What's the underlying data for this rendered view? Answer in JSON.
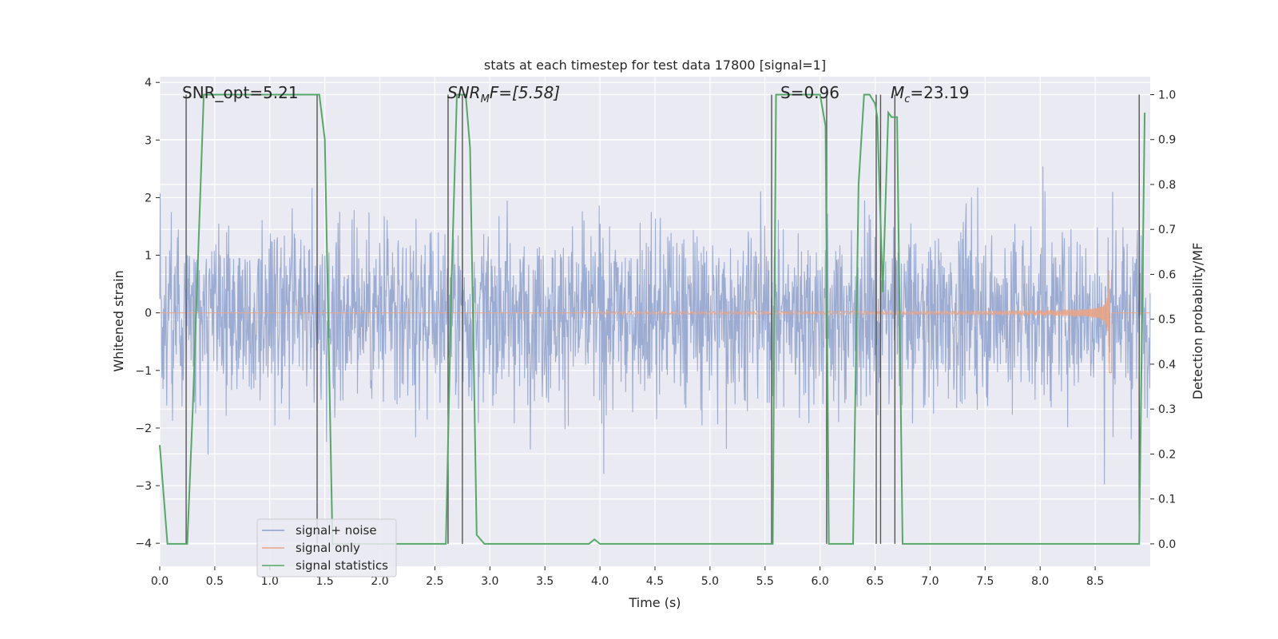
{
  "chart_data": {
    "type": "line",
    "title": "stats at each timestep for test data 17800 [signal=1]",
    "xlabel": "Time (s)",
    "ylabel_left": "Whitened strain",
    "ylabel_right": "Detection probability/MF",
    "xlim": [
      0.0,
      9.0
    ],
    "ylim_left": [
      -4.4,
      4.1
    ],
    "ylim_right": [
      -0.05,
      1.04
    ],
    "x_ticks": [
      "0.0",
      "0.5",
      "1.0",
      "1.5",
      "2.0",
      "2.5",
      "3.0",
      "3.5",
      "4.0",
      "4.5",
      "5.0",
      "5.5",
      "6.0",
      "6.5",
      "7.0",
      "7.5",
      "8.0",
      "8.5"
    ],
    "x_tick_values": [
      0,
      0.5,
      1,
      1.5,
      2,
      2.5,
      3,
      3.5,
      4,
      4.5,
      5,
      5.5,
      6,
      6.5,
      7,
      7.5,
      8,
      8.5
    ],
    "y_left_ticks": [
      "−4",
      "−3",
      "−2",
      "−1",
      "0",
      "1",
      "2",
      "3",
      "4"
    ],
    "y_left_tick_values": [
      -4,
      -3,
      -2,
      -1,
      0,
      1,
      2,
      3,
      4
    ],
    "y_right_ticks": [
      "0.0",
      "0.1",
      "0.2",
      "0.3",
      "0.4",
      "0.5",
      "0.6",
      "0.7",
      "0.8",
      "0.9",
      "1.0"
    ],
    "y_right_tick_values": [
      0,
      0.1,
      0.2,
      0.3,
      0.4,
      0.5,
      0.6,
      0.7,
      0.8,
      0.9,
      1.0
    ],
    "annotations": {
      "snr_opt": "SNR_opt=5.21",
      "snr_mf_base": "SNR",
      "snr_mf_sub": "M",
      "snr_mf_rest": "F=[5.58]",
      "s_val": "S=0.96",
      "mc_base": "M",
      "mc_sub": "c",
      "mc_rest": "=23.19"
    },
    "legend": {
      "position": "lower-left",
      "entries": [
        "signal+ noise",
        "signal only",
        "signal statistics"
      ]
    },
    "series": [
      {
        "name": "signal+ noise",
        "axis": "left",
        "kind": "noise",
        "color": "#8da0cb",
        "x_range": [
          0.0,
          9.0
        ],
        "core_amplitude": 1.7,
        "spike_max": 3.45,
        "spike_min": -4.0
      },
      {
        "name": "signal only",
        "axis": "left",
        "kind": "chirp",
        "color": "#e8a487",
        "x_range": [
          4.0,
          8.65
        ],
        "peak_time": 8.63,
        "peak_amplitude": 1.15
      },
      {
        "name": "signal statistics",
        "axis": "right",
        "kind": "line",
        "color": "#55a868",
        "x": [
          0.0,
          0.07,
          0.25,
          0.3,
          0.4,
          1.0,
          1.3,
          1.45,
          1.5,
          1.57,
          2.0,
          2.6,
          2.65,
          2.7,
          2.78,
          2.82,
          2.88,
          2.95,
          3.0,
          3.5,
          3.9,
          3.95,
          4.0,
          4.5,
          5.0,
          5.5,
          5.57,
          5.6,
          5.65,
          6.0,
          6.05,
          6.08,
          6.1,
          6.3,
          6.35,
          6.4,
          6.45,
          6.5,
          6.52,
          6.57,
          6.62,
          6.65,
          6.7,
          6.75,
          6.8,
          7.0,
          8.0,
          8.9,
          8.95
        ],
        "y": [
          0.22,
          0.0,
          0.0,
          0.3,
          1.0,
          1.0,
          1.0,
          1.0,
          0.9,
          0.0,
          0.0,
          0.0,
          0.57,
          1.0,
          1.0,
          0.88,
          0.02,
          0.0,
          0.0,
          0.0,
          0.0,
          0.01,
          0.0,
          0.0,
          0.0,
          0.0,
          0.0,
          1.0,
          1.0,
          1.0,
          0.93,
          0.0,
          0.0,
          0.0,
          0.8,
          1.0,
          1.0,
          0.98,
          0.95,
          0.56,
          0.96,
          0.95,
          0.95,
          0.0,
          0.0,
          0.0,
          0.0,
          0.0,
          0.96
        ]
      }
    ],
    "vertical_markers": [
      0.24,
      1.43,
      2.62,
      2.75,
      5.56,
      6.06,
      6.51,
      6.55,
      6.68,
      8.9
    ]
  },
  "colors": {
    "plot_bg": "#eaeaf2",
    "grid": "#ffffff",
    "marker": "#555555"
  }
}
